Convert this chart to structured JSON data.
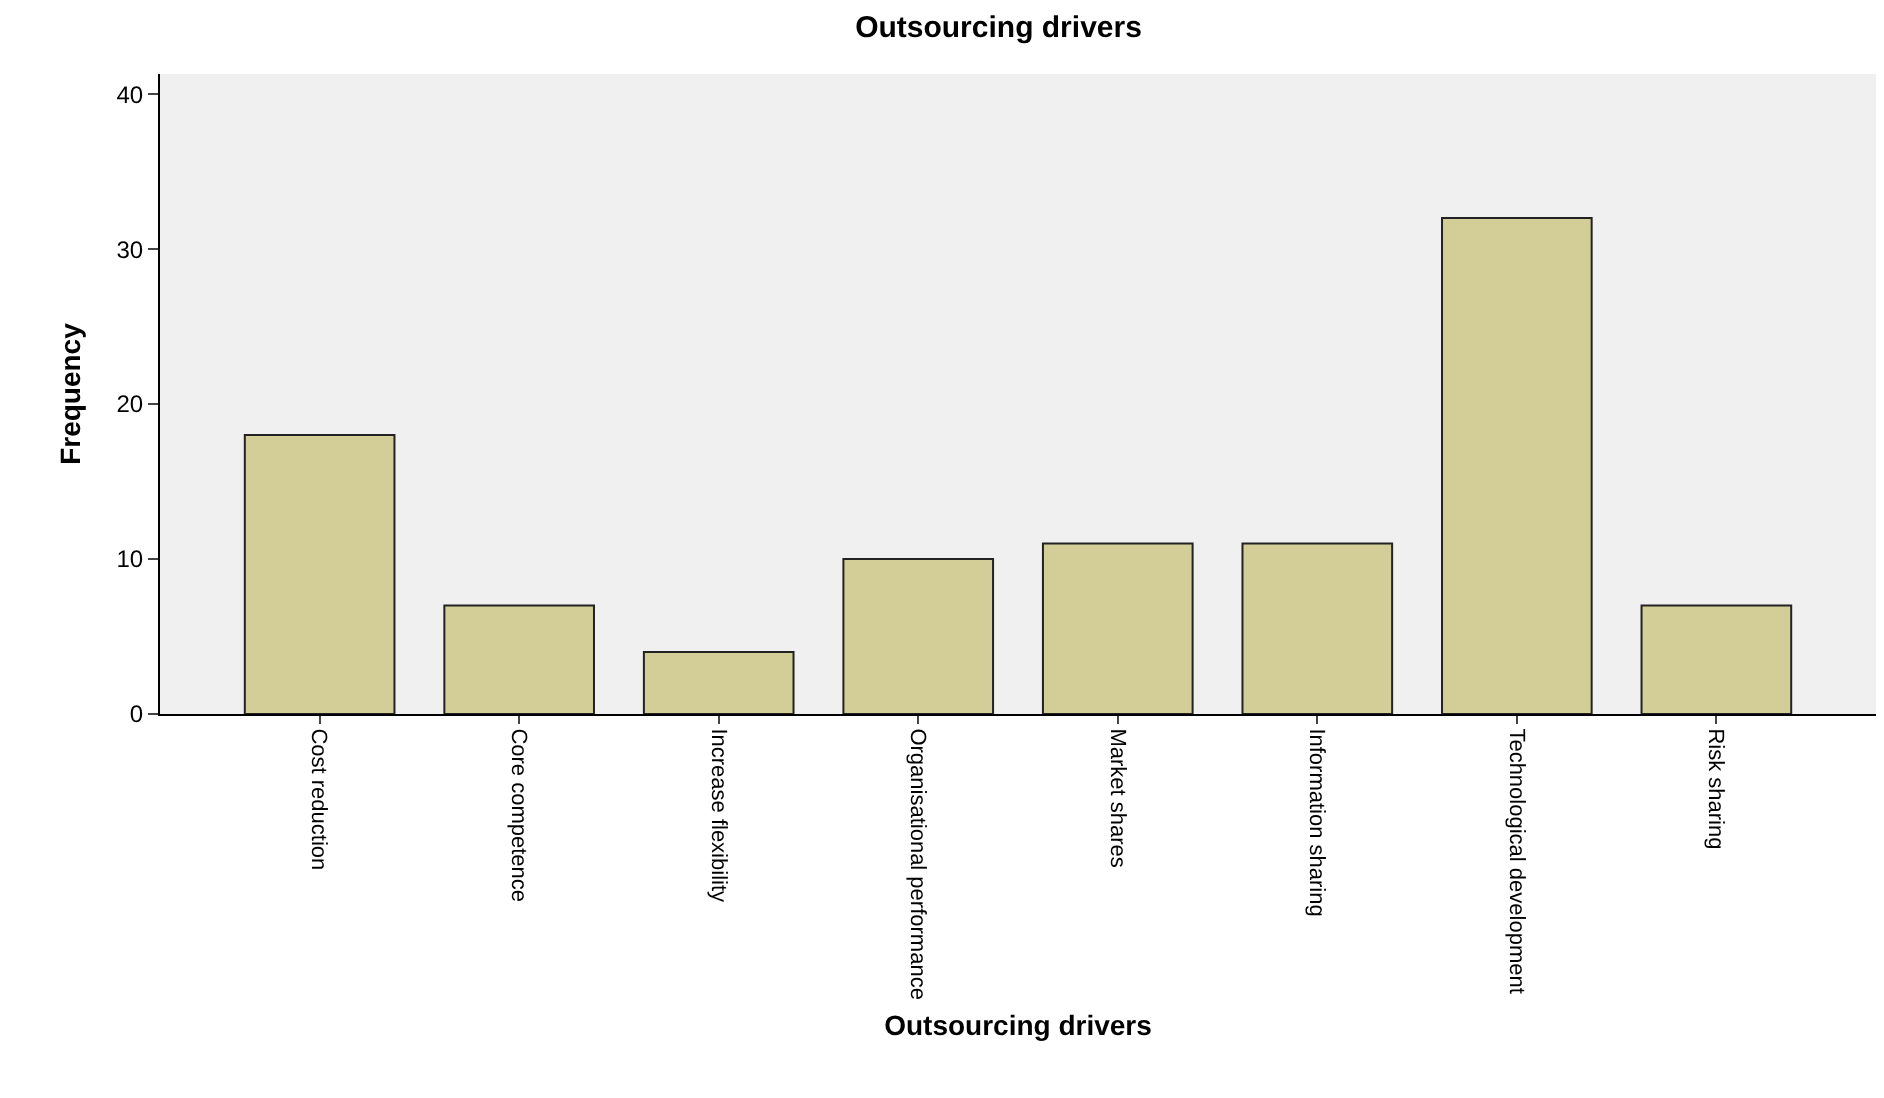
{
  "chart_data": {
    "type": "bar",
    "title": "Outsourcing drivers",
    "xlabel": "Outsourcing drivers",
    "ylabel": "Frequency",
    "categories": [
      "Cost reduction",
      "Core competence",
      "Increase flexibility",
      "Organisational performance",
      "Market shares",
      "Information sharing",
      "Technological development",
      "Risk sharing"
    ],
    "values": [
      18,
      7,
      4,
      10,
      11,
      11,
      32,
      7
    ],
    "color": "#d3ce98",
    "ylim": [
      0,
      41.3
    ],
    "yticks": [
      0,
      10,
      20,
      30,
      40
    ],
    "grid": false,
    "legend": false
  }
}
